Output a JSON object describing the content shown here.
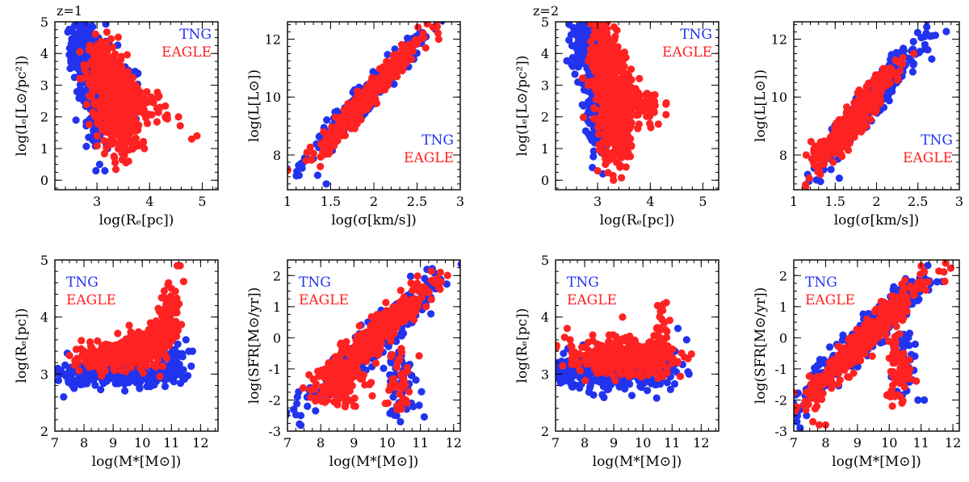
{
  "figure": {
    "colors": {
      "tng": "#2233ee",
      "eagle": "#ff2222",
      "axis": "#000000"
    },
    "redshift_labels": [
      "z=1",
      "z=2"
    ]
  },
  "chart_data": [
    {
      "id": "z1-ie-re",
      "type": "scatter",
      "redshift": "z=1",
      "xlabel": "log(Rₑ[pc])",
      "ylabel": "log(Iₑ[L⊙/pc²])",
      "xlim": [
        2.2,
        5.3
      ],
      "ylim": [
        -0.3,
        5
      ],
      "xticks": [
        3,
        4,
        5
      ],
      "yticks": [
        0,
        1,
        2,
        3,
        4,
        5
      ],
      "legend": {
        "position": "top-right",
        "entries": [
          "TNG",
          "EAGLE"
        ]
      },
      "series": [
        {
          "name": "TNG",
          "color": "#2233ee",
          "regions": [
            {
              "x": 2.72,
              "y": 4.2,
              "sx": 0.12,
              "sy": 0.45,
              "rho": 0,
              "n": 150
            },
            {
              "x": 2.92,
              "y": 3.1,
              "sx": 0.12,
              "sy": 0.6,
              "rho": 0,
              "n": 120
            },
            {
              "x": 3.0,
              "y": 2.0,
              "sx": 0.08,
              "sy": 0.35,
              "rho": 0,
              "n": 60
            },
            {
              "x": 3.3,
              "y": 3.2,
              "sx": 0.3,
              "sy": 0.6,
              "rho": -0.6,
              "n": 120
            }
          ],
          "points": [
            [
              2.6,
              1.9
            ],
            [
              2.85,
              1.9
            ],
            [
              2.98,
              0.3
            ],
            [
              3.15,
              0.3
            ],
            [
              3.05,
              0.5
            ],
            [
              3.2,
              1.0
            ]
          ]
        },
        {
          "name": "EAGLE",
          "color": "#ff2222",
          "regions": [
            {
              "x": 3.1,
              "y": 3.6,
              "sx": 0.15,
              "sy": 0.45,
              "rho": 0,
              "n": 180
            },
            {
              "x": 3.3,
              "y": 2.6,
              "sx": 0.2,
              "sy": 0.55,
              "rho": -0.3,
              "n": 260
            },
            {
              "x": 3.45,
              "y": 1.6,
              "sx": 0.2,
              "sy": 0.4,
              "rho": 0,
              "n": 150
            },
            {
              "x": 3.8,
              "y": 2.5,
              "sx": 0.3,
              "sy": 0.35,
              "rho": -0.5,
              "n": 80
            }
          ],
          "points": [
            [
              4.3,
              2.0
            ],
            [
              4.55,
              2.0
            ],
            [
              4.8,
              1.3
            ],
            [
              4.9,
              1.4
            ],
            [
              4.2,
              2.3
            ],
            [
              3.6,
              0.6
            ],
            [
              3.9,
              1.0
            ],
            [
              3.7,
              1.2
            ]
          ]
        }
      ]
    },
    {
      "id": "z1-l-sigma",
      "type": "scatter",
      "redshift": "z=1",
      "xlabel": "log(σ[km/s])",
      "ylabel": "log(L[L⊙])",
      "xlim": [
        1.0,
        3.0
      ],
      "ylim": [
        6.8,
        12.6
      ],
      "xticks": [
        1,
        1.5,
        2,
        2.5,
        3
      ],
      "yticks": [
        8,
        10,
        12
      ],
      "legend": {
        "position": "bottom-right",
        "entries": [
          "TNG",
          "EAGLE"
        ]
      },
      "series": [
        {
          "name": "TNG",
          "color": "#2233ee",
          "regions": [
            {
              "x": 1.9,
              "y": 10.0,
              "sx": 0.3,
              "sy": 0.95,
              "rho": 0.97,
              "n": 380
            }
          ],
          "points": [
            [
              1.2,
              7.9
            ],
            [
              1.35,
              7.3
            ],
            [
              1.45,
              7.0
            ],
            [
              2.5,
              11.9
            ]
          ]
        },
        {
          "name": "EAGLE",
          "color": "#ff2222",
          "regions": [
            {
              "x": 1.95,
              "y": 10.1,
              "sx": 0.28,
              "sy": 0.95,
              "rho": 0.97,
              "n": 420
            }
          ],
          "points": [
            [
              1.38,
              7.6
            ],
            [
              2.75,
              12.0
            ],
            [
              2.6,
              11.7
            ]
          ]
        }
      ]
    },
    {
      "id": "z2-ie-re",
      "type": "scatter",
      "redshift": "z=2",
      "xlabel": "log(Rₑ[pc])",
      "ylabel": "log(Iₑ[L⊙/pc²])",
      "xlim": [
        2.2,
        5.3
      ],
      "ylim": [
        -0.3,
        5
      ],
      "xticks": [
        3,
        4,
        5
      ],
      "yticks": [
        0,
        1,
        2,
        3,
        4,
        5
      ],
      "legend": {
        "position": "top-right",
        "entries": [
          "TNG",
          "EAGLE"
        ]
      },
      "series": [
        {
          "name": "TNG",
          "color": "#2233ee",
          "regions": [
            {
              "x": 2.75,
              "y": 4.3,
              "sx": 0.12,
              "sy": 0.4,
              "rho": 0,
              "n": 160
            },
            {
              "x": 2.95,
              "y": 3.0,
              "sx": 0.12,
              "sy": 0.7,
              "rho": 0,
              "n": 160
            },
            {
              "x": 3.0,
              "y": 1.6,
              "sx": 0.1,
              "sy": 0.4,
              "rho": 0,
              "n": 70
            }
          ],
          "points": [
            [
              2.9,
              0.4
            ],
            [
              3.1,
              0.2
            ],
            [
              2.6,
              3.7
            ]
          ]
        },
        {
          "name": "EAGLE",
          "color": "#ff2222",
          "regions": [
            {
              "x": 3.15,
              "y": 4.0,
              "sx": 0.15,
              "sy": 0.5,
              "rho": 0,
              "n": 180
            },
            {
              "x": 3.3,
              "y": 2.6,
              "sx": 0.2,
              "sy": 0.7,
              "rho": 0,
              "n": 280
            },
            {
              "x": 3.4,
              "y": 1.3,
              "sx": 0.15,
              "sy": 0.45,
              "rho": 0,
              "n": 120
            },
            {
              "x": 3.85,
              "y": 2.3,
              "sx": 0.2,
              "sy": 0.35,
              "rho": 0,
              "n": 60
            }
          ],
          "points": [
            [
              4.3,
              2.4
            ],
            [
              4.0,
              2.1
            ],
            [
              3.3,
              0.0
            ],
            [
              3.15,
              4.9
            ],
            [
              3.0,
              0.3
            ]
          ]
        }
      ]
    },
    {
      "id": "z2-l-sigma",
      "type": "scatter",
      "redshift": "z=2",
      "xlabel": "log(σ[km/s])",
      "ylabel": "log(L[L⊙])",
      "xlim": [
        1.0,
        3.0
      ],
      "ylim": [
        6.8,
        12.6
      ],
      "xticks": [
        1,
        1.5,
        2,
        2.5,
        3
      ],
      "yticks": [
        8,
        10,
        12
      ],
      "legend": {
        "position": "bottom-right",
        "entries": [
          "TNG",
          "EAGLE"
        ]
      },
      "series": [
        {
          "name": "TNG",
          "color": "#2233ee",
          "regions": [
            {
              "x": 1.95,
              "y": 9.9,
              "sx": 0.28,
              "sy": 0.95,
              "rho": 0.95,
              "n": 380
            }
          ],
          "points": [
            [
              1.55,
              7.2
            ],
            [
              2.6,
              12.2
            ],
            [
              2.65,
              12.1
            ],
            [
              1.45,
              7.5
            ]
          ]
        },
        {
          "name": "EAGLE",
          "color": "#ff2222",
          "regions": [
            {
              "x": 1.75,
              "y": 9.3,
              "sx": 0.22,
              "sy": 0.8,
              "rho": 0.93,
              "n": 380
            },
            {
              "x": 1.4,
              "y": 8.2,
              "sx": 0.12,
              "sy": 0.2,
              "rho": 0,
              "n": 40
            }
          ],
          "points": [
            [
              1.15,
              8.0
            ],
            [
              1.25,
              8.1
            ],
            [
              2.45,
              11.5
            ]
          ]
        }
      ]
    },
    {
      "id": "z1-re-mstar",
      "type": "scatter",
      "redshift": "z=1",
      "xlabel": "log(M*[M⊙])",
      "ylabel": "log(Rₑ[pc])",
      "xlim": [
        7.0,
        12.6
      ],
      "ylim": [
        2.0,
        5.0
      ],
      "xticks": [
        7,
        8,
        9,
        10,
        11,
        12
      ],
      "yticks": [
        2,
        3,
        4,
        5
      ],
      "legend": {
        "position": "top-left",
        "entries": [
          "TNG",
          "EAGLE"
        ]
      },
      "series": [
        {
          "name": "TNG",
          "color": "#2233ee",
          "regions": [
            {
              "x": 9.2,
              "y": 3.0,
              "sx": 1.0,
              "sy": 0.1,
              "rho": 0,
              "n": 260
            },
            {
              "x": 7.8,
              "y": 3.0,
              "sx": 0.3,
              "sy": 0.12,
              "rho": 0,
              "n": 40
            },
            {
              "x": 11.0,
              "y": 3.2,
              "sx": 0.3,
              "sy": 0.15,
              "rho": 0,
              "n": 40
            }
          ],
          "points": [
            [
              7.1,
              3.1
            ],
            [
              7.2,
              3.0
            ],
            [
              7.3,
              2.6
            ],
            [
              7.6,
              2.8
            ],
            [
              11.5,
              3.6
            ],
            [
              11.6,
              3.4
            ]
          ]
        },
        {
          "name": "EAGLE",
          "color": "#ff2222",
          "regions": [
            {
              "x": 8.8,
              "y": 3.3,
              "sx": 0.6,
              "sy": 0.1,
              "rho": 0,
              "n": 180
            },
            {
              "x": 10.0,
              "y": 3.5,
              "sx": 0.4,
              "sy": 0.15,
              "rho": 0.3,
              "n": 160
            },
            {
              "x": 10.8,
              "y": 3.8,
              "sx": 0.25,
              "sy": 0.3,
              "rho": 0.5,
              "n": 160
            }
          ],
          "points": [
            [
              11.0,
              4.5
            ],
            [
              11.2,
              4.9
            ],
            [
              11.3,
              4.9
            ],
            [
              10.9,
              4.6
            ],
            [
              11.1,
              4.3
            ],
            [
              7.8,
              3.2
            ]
          ]
        }
      ]
    },
    {
      "id": "z1-sfr-mstar",
      "type": "scatter",
      "redshift": "z=1",
      "xlabel": "log(M*[M⊙])",
      "ylabel": "log(SFR[M⊙/yr])",
      "xlim": [
        7.0,
        12.2
      ],
      "ylim": [
        -3.0,
        2.5
      ],
      "xticks": [
        7,
        8,
        9,
        10,
        11,
        12
      ],
      "yticks": [
        -3,
        -2,
        -1,
        0,
        1,
        2
      ],
      "legend": {
        "position": "top-left",
        "entries": [
          "TNG",
          "EAGLE"
        ]
      },
      "series": [
        {
          "name": "TNG",
          "color": "#2233ee",
          "regions": [
            {
              "x": 9.5,
              "y": -0.2,
              "sx": 1.0,
              "sy": 1.0,
              "rho": 0.95,
              "n": 340
            },
            {
              "x": 10.4,
              "y": -1.3,
              "sx": 0.3,
              "sy": 0.6,
              "rho": 0,
              "n": 60
            }
          ],
          "points": [
            [
              7.4,
              -2.5
            ],
            [
              7.6,
              -2.2
            ],
            [
              10.4,
              -2.7
            ],
            [
              11.2,
              2.2
            ],
            [
              7.3,
              -1.9
            ]
          ]
        },
        {
          "name": "EAGLE",
          "color": "#ff2222",
          "regions": [
            {
              "x": 9.6,
              "y": 0.0,
              "sx": 0.9,
              "sy": 0.9,
              "rho": 0.94,
              "n": 380
            },
            {
              "x": 8.6,
              "y": -1.4,
              "sx": 0.35,
              "sy": 0.4,
              "rho": 0,
              "n": 80
            },
            {
              "x": 10.3,
              "y": -1.3,
              "sx": 0.2,
              "sy": 0.6,
              "rho": 0,
              "n": 40
            }
          ],
          "points": [
            [
              8.2,
              -2.0
            ],
            [
              8.5,
              -2.1
            ],
            [
              11.5,
              1.9
            ],
            [
              11.6,
              2.1
            ],
            [
              10.6,
              -2.1
            ]
          ]
        }
      ]
    },
    {
      "id": "z2-re-mstar",
      "type": "scatter",
      "redshift": "z=2",
      "xlabel": "log(M*[M⊙])",
      "ylabel": "log(Rₑ[pc])",
      "xlim": [
        7.0,
        12.6
      ],
      "ylim": [
        2.0,
        5.0
      ],
      "xticks": [
        7,
        8,
        9,
        10,
        11,
        12
      ],
      "yticks": [
        2,
        3,
        4,
        5
      ],
      "legend": {
        "position": "top-left",
        "entries": [
          "TNG",
          "EAGLE"
        ]
      },
      "series": [
        {
          "name": "TNG",
          "color": "#2233ee",
          "regions": [
            {
              "x": 9.0,
              "y": 3.0,
              "sx": 1.0,
              "sy": 0.15,
              "rho": 0,
              "n": 280
            },
            {
              "x": 7.5,
              "y": 3.1,
              "sx": 0.3,
              "sy": 0.15,
              "rho": 0,
              "n": 40
            }
          ],
          "points": [
            [
              11.1,
              3.4
            ],
            [
              11.2,
              3.8
            ],
            [
              11.5,
              3.6
            ],
            [
              7.2,
              2.9
            ]
          ]
        },
        {
          "name": "EAGLE",
          "color": "#ff2222",
          "regions": [
            {
              "x": 9.2,
              "y": 3.3,
              "sx": 0.9,
              "sy": 0.15,
              "rho": 0,
              "n": 380
            },
            {
              "x": 10.6,
              "y": 3.6,
              "sx": 0.1,
              "sy": 0.3,
              "rho": 0,
              "n": 40
            }
          ],
          "points": [
            [
              10.5,
              4.2
            ],
            [
              10.6,
              4.1
            ],
            [
              9.3,
              4.0
            ],
            [
              7.5,
              3.6
            ],
            [
              7.4,
              3.8
            ]
          ]
        }
      ]
    },
    {
      "id": "z2-sfr-mstar",
      "type": "scatter",
      "redshift": "z=2",
      "xlabel": "log(M*[M⊙])",
      "ylabel": "log(SFR[M⊙/yr])",
      "xlim": [
        7.0,
        12.2
      ],
      "ylim": [
        -3.0,
        2.5
      ],
      "xticks": [
        7,
        8,
        9,
        10,
        11,
        12
      ],
      "yticks": [
        -3,
        -2,
        -1,
        0,
        1,
        2
      ],
      "legend": {
        "position": "top-left",
        "entries": [
          "TNG",
          "EAGLE"
        ]
      },
      "series": [
        {
          "name": "TNG",
          "color": "#2233ee",
          "regions": [
            {
              "x": 9.3,
              "y": 0.1,
              "sx": 1.0,
              "sy": 1.0,
              "rho": 0.95,
              "n": 360
            },
            {
              "x": 10.5,
              "y": -0.8,
              "sx": 0.2,
              "sy": 0.5,
              "rho": 0,
              "n": 40
            }
          ],
          "points": [
            [
              7.1,
              -2.7
            ],
            [
              7.2,
              -2.9
            ],
            [
              7.4,
              -2.5
            ],
            [
              10.9,
              -2.0
            ],
            [
              11.1,
              -2.0
            ],
            [
              11.5,
              1.8
            ]
          ]
        },
        {
          "name": "EAGLE",
          "color": "#ff2222",
          "regions": [
            {
              "x": 9.2,
              "y": -0.1,
              "sx": 0.9,
              "sy": 0.95,
              "rho": 0.95,
              "n": 400
            },
            {
              "x": 10.3,
              "y": -0.9,
              "sx": 0.2,
              "sy": 0.6,
              "rho": 0,
              "n": 60
            }
          ],
          "points": [
            [
              7.8,
              -2.8
            ],
            [
              8.0,
              -2.8
            ],
            [
              7.6,
              -2.7
            ],
            [
              11.0,
              1.8
            ],
            [
              10.4,
              -2.1
            ]
          ]
        }
      ]
    }
  ]
}
